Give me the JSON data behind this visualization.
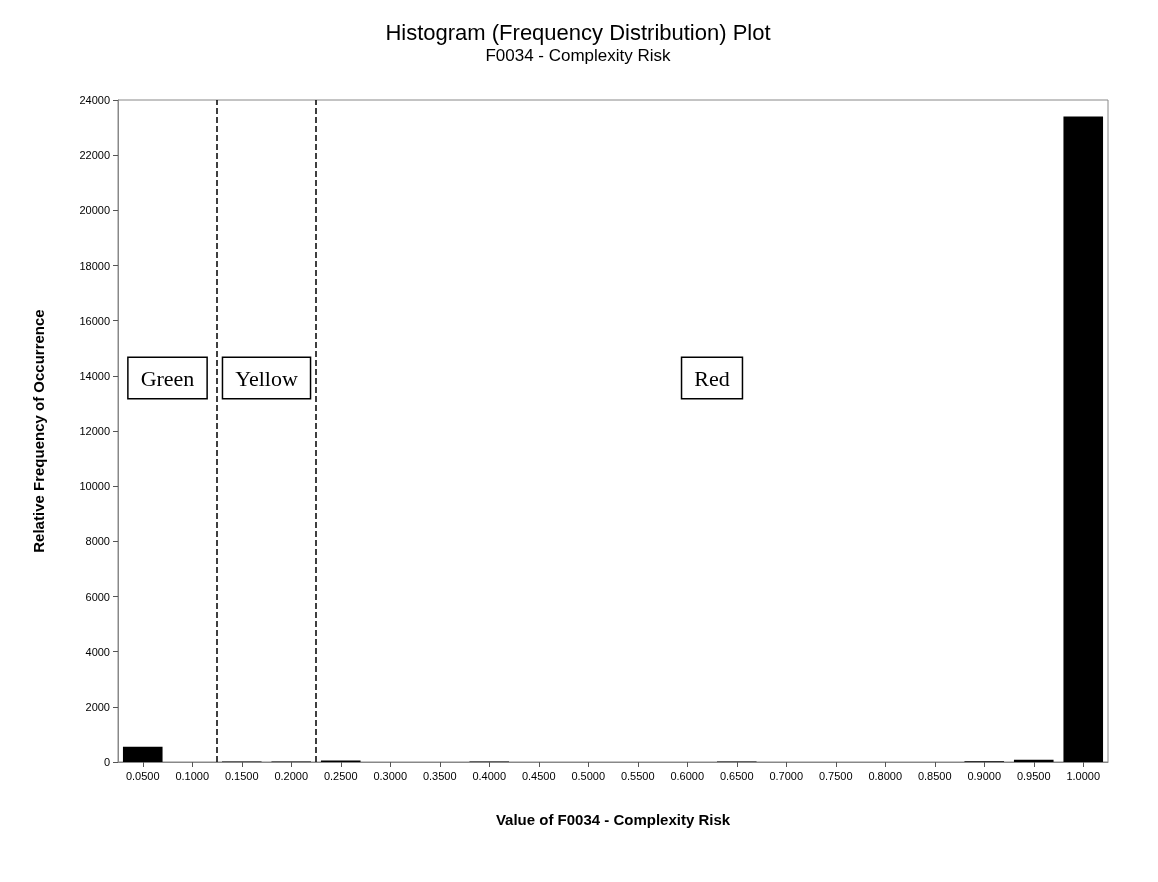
{
  "chart_data": {
    "type": "histogram",
    "title": "Histogram (Frequency Distribution) Plot",
    "subtitle": "F0034 - Complexity Risk",
    "xlabel": "Value of F0034 - Complexity Risk",
    "ylabel": "Relative Frequency of Occurrence",
    "bins": [
      0.025,
      0.075,
      0.125,
      0.175,
      0.225,
      0.275,
      0.325,
      0.375,
      0.425,
      0.475,
      0.525,
      0.575,
      0.625,
      0.675,
      0.725,
      0.775,
      0.825,
      0.875,
      0.925,
      0.975,
      1.025
    ],
    "values": [
      550,
      0,
      20,
      20,
      50,
      0,
      0,
      20,
      0,
      0,
      0,
      0,
      20,
      0,
      0,
      0,
      0,
      30,
      80,
      23400
    ],
    "color": "#000000",
    "xlim": [
      0.025,
      1.025
    ],
    "xticks": [
      {
        "value": 0.05,
        "label": "0.0500"
      },
      {
        "value": 0.1,
        "label": "0.1000"
      },
      {
        "value": 0.15,
        "label": "0.1500"
      },
      {
        "value": 0.2,
        "label": "0.2000"
      },
      {
        "value": 0.25,
        "label": "0.2500"
      },
      {
        "value": 0.3,
        "label": "0.3000"
      },
      {
        "value": 0.35,
        "label": "0.3500"
      },
      {
        "value": 0.4,
        "label": "0.4000"
      },
      {
        "value": 0.45,
        "label": "0.4500"
      },
      {
        "value": 0.5,
        "label": "0.5000"
      },
      {
        "value": 0.55,
        "label": "0.5500"
      },
      {
        "value": 0.6,
        "label": "0.6000"
      },
      {
        "value": 0.65,
        "label": "0.6500"
      },
      {
        "value": 0.7,
        "label": "0.7000"
      },
      {
        "value": 0.75,
        "label": "0.7500"
      },
      {
        "value": 0.8,
        "label": "0.8000"
      },
      {
        "value": 0.85,
        "label": "0.8500"
      },
      {
        "value": 0.9,
        "label": "0.9000"
      },
      {
        "value": 0.95,
        "label": "0.9500"
      },
      {
        "value": 1,
        "label": "1.0000"
      }
    ],
    "ylim": [
      0,
      24000
    ],
    "yticks": [
      0,
      2000,
      4000,
      6000,
      8000,
      10000,
      12000,
      14000,
      16000,
      18000,
      20000,
      22000,
      24000
    ],
    "ref_lines": [
      {
        "axis": "x",
        "value": 0.125,
        "line_style": "dashed",
        "color": "#000000"
      },
      {
        "axis": "x",
        "value": 0.225,
        "line_style": "dashed",
        "color": "#000000"
      }
    ],
    "annotations": [
      "Green",
      "Yellow",
      "Red"
    ],
    "grid": false,
    "legend": false
  }
}
